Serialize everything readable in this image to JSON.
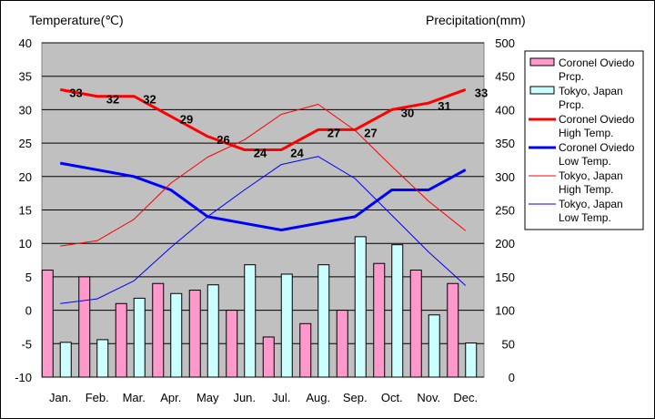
{
  "chart_data": {
    "type": "bar+line",
    "categories": [
      "Jan.",
      "Feb.",
      "Mar.",
      "Apr.",
      "May",
      "Jun.",
      "Jul.",
      "Aug.",
      "Sep.",
      "Oct.",
      "Nov.",
      "Dec."
    ],
    "ylabel_left": "Temperature(℃)",
    "ylabel_right": "Precipitation(mm)",
    "ylim_left": [
      -10,
      40
    ],
    "ylim_right": [
      0,
      500
    ],
    "yticks_left": [
      "40",
      "35",
      "30",
      "25",
      "20",
      "15",
      "10",
      "5",
      "0",
      "-5",
      "-10"
    ],
    "yticks_right": [
      "500",
      "450",
      "400",
      "350",
      "300",
      "250",
      "200",
      "150",
      "100",
      "50",
      "0"
    ],
    "grid": true,
    "legend_position": "right",
    "bars": [
      {
        "name": "Coronel Oviedo Prcp.",
        "color": "#ff99cc",
        "values": [
          160,
          150,
          110,
          140,
          130,
          100,
          60,
          80,
          100,
          170,
          160,
          140
        ]
      },
      {
        "name": "Tokyo, Japan Prcp.",
        "color": "#ccffff",
        "values": [
          52,
          56,
          118,
          125,
          138,
          168,
          154,
          168,
          210,
          198,
          93,
          51
        ]
      }
    ],
    "lines": [
      {
        "name": "Coronel Oviedo High Temp.",
        "color": "#ff0000",
        "width": 3,
        "values": [
          33,
          32,
          32,
          29,
          26,
          24,
          24,
          27,
          27,
          30,
          31,
          33
        ],
        "labels": [
          "33",
          "32",
          "32",
          "29",
          "26",
          "24",
          "24",
          "27",
          "27",
          "30",
          "31",
          "33"
        ]
      },
      {
        "name": "Coronel Oviedo Low Temp.",
        "color": "#0000ff",
        "width": 3,
        "values": [
          22,
          21,
          20,
          18,
          14,
          13,
          12,
          13,
          14,
          18,
          18,
          21
        ]
      },
      {
        "name": "Tokyo, Japan High Temp.",
        "color": "#ff0000",
        "width": 1,
        "values": [
          9.6,
          10.4,
          13.6,
          19.0,
          22.9,
          25.5,
          29.3,
          30.8,
          26.9,
          21.5,
          16.3,
          11.9
        ]
      },
      {
        "name": "Tokyo, Japan Low Temp.",
        "color": "#0000ff",
        "width": 1,
        "values": [
          1.0,
          1.7,
          4.4,
          9.4,
          14.0,
          18.0,
          21.8,
          23.0,
          19.7,
          14.2,
          8.7,
          3.7
        ]
      }
    ],
    "legend": [
      {
        "lines": [
          "Coronel Oviedo",
          "Prcp."
        ],
        "kind": "box",
        "color": "#ff99cc"
      },
      {
        "lines": [
          "Tokyo, Japan",
          "Prcp."
        ],
        "kind": "box",
        "color": "#ccffff"
      },
      {
        "lines": [
          "Coronel Oviedo",
          "High Temp."
        ],
        "kind": "line",
        "color": "#ff0000",
        "width": 3
      },
      {
        "lines": [
          "Coronel Oviedo",
          "Low Temp."
        ],
        "kind": "line",
        "color": "#0000ff",
        "width": 3
      },
      {
        "lines": [
          "Tokyo, Japan",
          "High Temp."
        ],
        "kind": "line",
        "color": "#ff0000",
        "width": 1
      },
      {
        "lines": [
          "Tokyo, Japan",
          "Low Temp."
        ],
        "kind": "line",
        "color": "#0000ff",
        "width": 1
      }
    ],
    "plot_background": "#c0c0c0"
  }
}
